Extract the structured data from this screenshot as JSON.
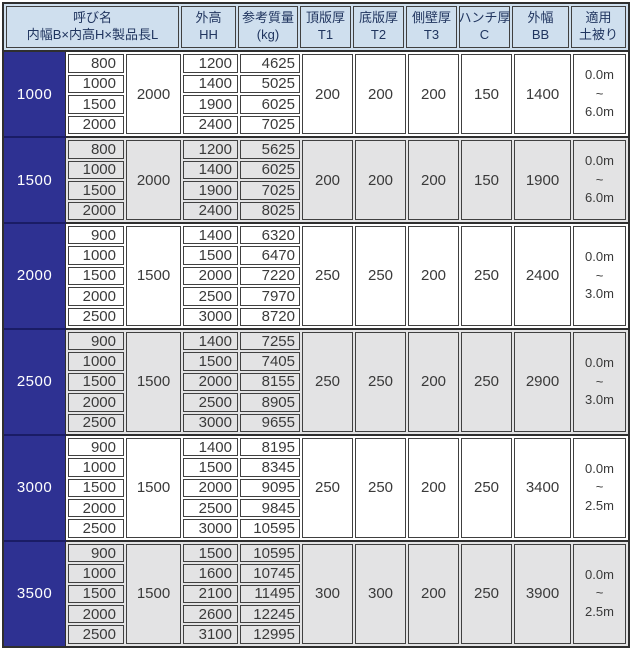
{
  "colors": {
    "navy": "#2e3192",
    "navy_dark": "#1a1c66",
    "header_bg": "#cfdfee",
    "shade": "#e3e3e4",
    "line": "#404040",
    "ink": "#3a3a3a",
    "header_ink": "#20355f"
  },
  "header": {
    "name_title": "呼び名",
    "name_sub": "内幅B×内高H×製品長L",
    "cols": [
      {
        "line1": "外高",
        "line2": "HH"
      },
      {
        "line1": "参考質量",
        "line2": "(kg)"
      },
      {
        "line1": "頂版厚",
        "line2": "T1"
      },
      {
        "line1": "底版厚",
        "line2": "T2"
      },
      {
        "line1": "側壁厚",
        "line2": "T3"
      },
      {
        "line1": "ハンチ厚",
        "line2": "C"
      },
      {
        "line1": "外幅",
        "line2": "BB"
      },
      {
        "line1": "適用",
        "line2": "土被り"
      }
    ]
  },
  "blocks": [
    {
      "b": "1000",
      "l": "2000",
      "shaded": false,
      "rows": [
        [
          "800",
          "1200",
          "4625"
        ],
        [
          "1000",
          "1400",
          "5025"
        ],
        [
          "1500",
          "1900",
          "6025"
        ],
        [
          "2000",
          "2400",
          "7025"
        ]
      ],
      "t1": "200",
      "t2": "200",
      "t3": "200",
      "c": "150",
      "bb": "1400",
      "cover": "0.0m\n~\n6.0m"
    },
    {
      "b": "1500",
      "l": "2000",
      "shaded": true,
      "rows": [
        [
          "800",
          "1200",
          "5625"
        ],
        [
          "1000",
          "1400",
          "6025"
        ],
        [
          "1500",
          "1900",
          "7025"
        ],
        [
          "2000",
          "2400",
          "8025"
        ]
      ],
      "t1": "200",
      "t2": "200",
      "t3": "200",
      "c": "150",
      "bb": "1900",
      "cover": "0.0m\n~\n6.0m"
    },
    {
      "b": "2000",
      "l": "1500",
      "shaded": false,
      "rows": [
        [
          "900",
          "1400",
          "6320"
        ],
        [
          "1000",
          "1500",
          "6470"
        ],
        [
          "1500",
          "2000",
          "7220"
        ],
        [
          "2000",
          "2500",
          "7970"
        ],
        [
          "2500",
          "3000",
          "8720"
        ]
      ],
      "t1": "250",
      "t2": "250",
      "t3": "200",
      "c": "250",
      "bb": "2400",
      "cover": "0.0m\n~\n3.0m"
    },
    {
      "b": "2500",
      "l": "1500",
      "shaded": true,
      "rows": [
        [
          "900",
          "1400",
          "7255"
        ],
        [
          "1000",
          "1500",
          "7405"
        ],
        [
          "1500",
          "2000",
          "8155"
        ],
        [
          "2000",
          "2500",
          "8905"
        ],
        [
          "2500",
          "3000",
          "9655"
        ]
      ],
      "t1": "250",
      "t2": "250",
      "t3": "200",
      "c": "250",
      "bb": "2900",
      "cover": "0.0m\n~\n3.0m"
    },
    {
      "b": "3000",
      "l": "1500",
      "shaded": false,
      "rows": [
        [
          "900",
          "1400",
          "8195"
        ],
        [
          "1000",
          "1500",
          "8345"
        ],
        [
          "1500",
          "2000",
          "9095"
        ],
        [
          "2000",
          "2500",
          "9845"
        ],
        [
          "2500",
          "3000",
          "10595"
        ]
      ],
      "t1": "250",
      "t2": "250",
      "t3": "200",
      "c": "250",
      "bb": "3400",
      "cover": "0.0m\n~\n2.5m"
    },
    {
      "b": "3500",
      "l": "1500",
      "shaded": true,
      "rows": [
        [
          "900",
          "1500",
          "10595"
        ],
        [
          "1000",
          "1600",
          "10745"
        ],
        [
          "1500",
          "2100",
          "11495"
        ],
        [
          "2000",
          "2600",
          "12245"
        ],
        [
          "2500",
          "3100",
          "12995"
        ]
      ],
      "t1": "300",
      "t2": "300",
      "t3": "200",
      "c": "250",
      "bb": "3900",
      "cover": "0.0m\n~\n2.5m"
    }
  ]
}
